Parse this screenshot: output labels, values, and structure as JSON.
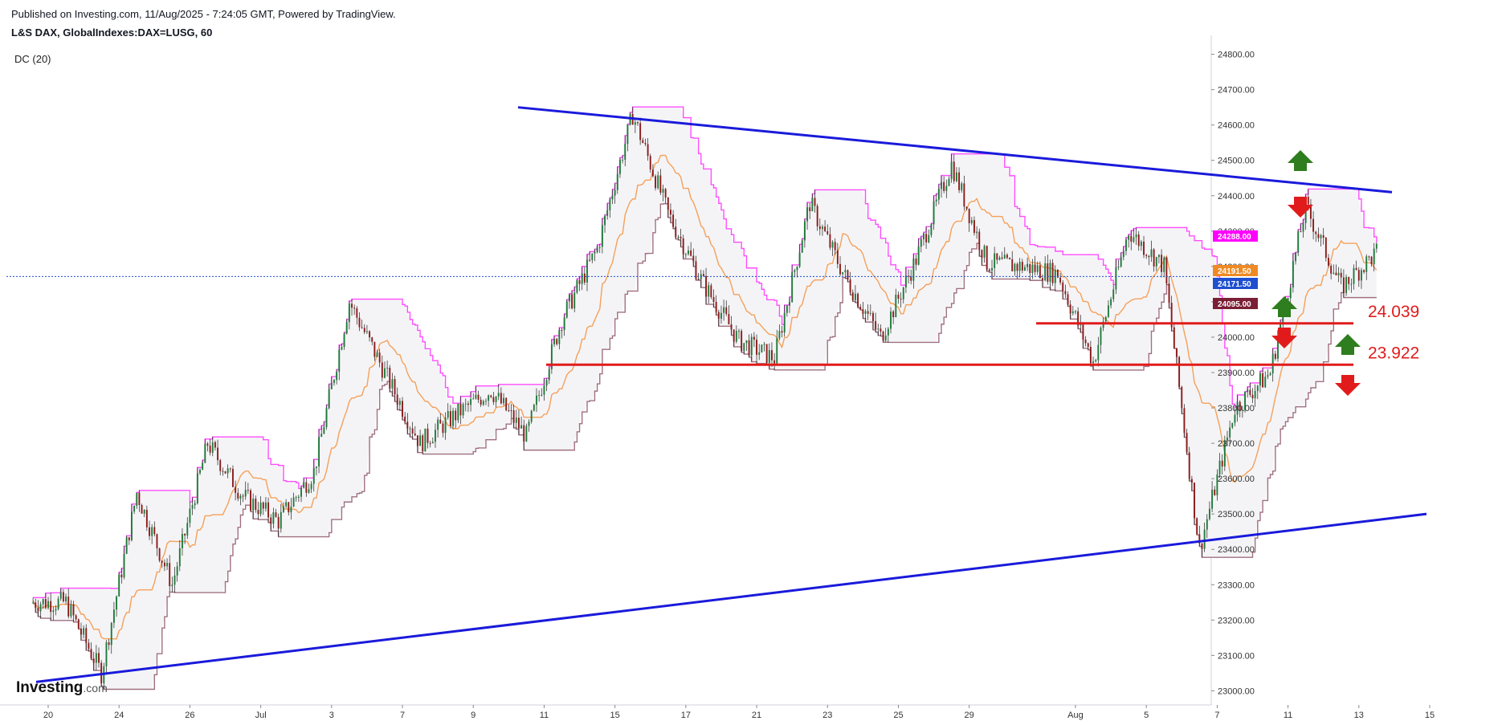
{
  "header": {
    "published": "Published on Investing.com, 11/Aug/2025 - 7:24:05 GMT, Powered by TradingView.",
    "symbol": "L&S DAX, GlobalIndexes:DAX=LUSG, 60",
    "indicator": "DC (20)"
  },
  "logo": {
    "main": "Investing",
    "suffix": ".com"
  },
  "colors": {
    "trendline": "#1a1adb",
    "level": "#e11b1b",
    "dc_upper": "#ff4dff",
    "dc_middle": "#f5a05a",
    "dc_lower": "#a07080",
    "candle_up": "#1f7a3a",
    "candle_down": "#8b1a1a",
    "arrow_up": "#2e7d1e",
    "arrow_down": "#e11b1b",
    "current_price": "#1f4fcf"
  },
  "chart_data": {
    "type": "candlestick",
    "y_axis": {
      "min": 22960,
      "max": 24840,
      "ticks": [
        23000,
        23100,
        23200,
        23300,
        23400,
        23500,
        23600,
        23700,
        23800,
        23900,
        24000,
        24100,
        24200,
        24300,
        24400,
        24500,
        24600,
        24700,
        24800
      ],
      "tick_labels": [
        "23000.00",
        "23100.00",
        "23200.00",
        "23300.00",
        "23400.00",
        "23500.00",
        "23600.00",
        "23700.00",
        "23800.00",
        "23900.00",
        "24000.00",
        "24100.00",
        "24200.00",
        "24300.00",
        "24400.00",
        "24500.00",
        "24600.00",
        "24700.00",
        "24800.00"
      ]
    },
    "x_axis": {
      "tick_labels": [
        "20",
        "24",
        "26",
        "Jul",
        "3",
        "7",
        "9",
        "11",
        "15",
        "17",
        "21",
        "23",
        "25",
        "29",
        "Aug",
        "5",
        "7",
        "11",
        "13",
        "15"
      ],
      "tick_index": [
        0,
        2,
        4,
        6,
        8,
        10,
        12,
        14,
        16,
        18,
        20,
        22,
        24,
        26,
        29,
        31,
        33,
        35,
        37,
        39
      ]
    },
    "closes_by_session": [
      23250,
      23050,
      23560,
      23300,
      23700,
      23550,
      23480,
      23620,
      24100,
      23900,
      23700,
      23780,
      23850,
      23720,
      24050,
      24250,
      24630,
      24350,
      24150,
      23990,
      23940,
      24380,
      24170,
      24000,
      24220,
      24490,
      24210,
      24200,
      24180,
      23930,
      24300,
      24200,
      23400,
      23800,
      23900,
      24370,
      24140,
      24240
    ],
    "price_tags": [
      {
        "label": "24288.00",
        "value": 24288,
        "color": "#ff00ff"
      },
      {
        "label": "24191.50",
        "value": 24191.5,
        "color": "#f08a24"
      },
      {
        "label": "24171.50",
        "value": 24171.5,
        "color": "#1f4fcf"
      },
      {
        "label": "24095.00",
        "value": 24095,
        "color": "#7a1f35"
      }
    ],
    "current_price": 24171.5,
    "levels": [
      {
        "label": "24.039",
        "value": 24039
      },
      {
        "label": "23.922",
        "value": 23922
      }
    ],
    "trendlines": [
      {
        "name": "upper",
        "from": 24650,
        "to": 24410
      },
      {
        "name": "lower",
        "from": 23025,
        "to": 23500
      }
    ]
  }
}
